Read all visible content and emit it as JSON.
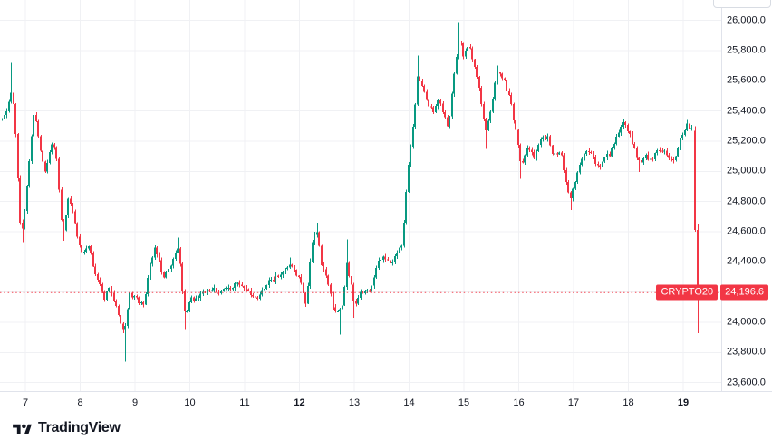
{
  "logo": {
    "text": "TradingView"
  },
  "chart_data": {
    "type": "candlestick",
    "symbol": "CRYPTO20",
    "last_price_text": "24,196.6",
    "last_price": 24196.6,
    "up_color": "#089981",
    "down_color": "#f23645",
    "price_line_color": "#f23645",
    "grid_color": "#f0f1f4",
    "axis_text_color": "#131722",
    "y_axis": {
      "visible_labels": [
        {
          "value": 26000,
          "text": "26,000.0"
        },
        {
          "value": 25800,
          "text": "25,800.0"
        },
        {
          "value": 25600,
          "text": "25,600.0"
        },
        {
          "value": 25400,
          "text": "25,400.0"
        },
        {
          "value": 25200,
          "text": "25,200.0"
        },
        {
          "value": 25000,
          "text": "25,000.0"
        },
        {
          "value": 24800,
          "text": "24,800.0"
        },
        {
          "value": 24600,
          "text": "24,600.0"
        },
        {
          "value": 24400,
          "text": "24,400.0"
        },
        {
          "value": 24000,
          "text": "24,000.0"
        },
        {
          "value": 23800,
          "text": "23,800.0"
        },
        {
          "value": 23600,
          "text": "23,600.0"
        }
      ],
      "grid_values": [
        26000,
        25800,
        25600,
        25400,
        25200,
        25000,
        24800,
        24600,
        24400,
        24200,
        24000,
        23800,
        23600
      ]
    },
    "x_axis": {
      "unit": "day-of-month",
      "labels": [
        {
          "text": "7",
          "day": 7,
          "bold": false
        },
        {
          "text": "8",
          "day": 8,
          "bold": false
        },
        {
          "text": "9",
          "day": 9,
          "bold": false
        },
        {
          "text": "10",
          "day": 10,
          "bold": false
        },
        {
          "text": "11",
          "day": 11,
          "bold": false
        },
        {
          "text": "12",
          "day": 12,
          "bold": true
        },
        {
          "text": "13",
          "day": 13,
          "bold": false
        },
        {
          "text": "14",
          "day": 14,
          "bold": false
        },
        {
          "text": "15",
          "day": 15,
          "bold": false
        },
        {
          "text": "16",
          "day": 16,
          "bold": false
        },
        {
          "text": "17",
          "day": 17,
          "bold": false
        },
        {
          "text": "18",
          "day": 18,
          "bold": false
        },
        {
          "text": "19",
          "day": 19,
          "bold": true
        }
      ]
    },
    "t_start": 6.57,
    "t_end": 19.19,
    "bars_per_day": 24,
    "anchors": [
      [
        6.57,
        25350,
        0,
        0
      ],
      [
        6.67,
        25430,
        0,
        0
      ],
      [
        6.75,
        25560,
        25720,
        0
      ],
      [
        6.82,
        25250,
        0,
        0
      ],
      [
        6.9,
        24650,
        0,
        0
      ],
      [
        6.95,
        24600,
        0,
        24530
      ],
      [
        7.05,
        25000,
        0,
        0
      ],
      [
        7.16,
        25390,
        25450,
        0
      ],
      [
        7.28,
        25150,
        0,
        0
      ],
      [
        7.36,
        25000,
        0,
        0
      ],
      [
        7.48,
        25200,
        0,
        0
      ],
      [
        7.56,
        25150,
        0,
        0
      ],
      [
        7.64,
        24720,
        0,
        0
      ],
      [
        7.7,
        24590,
        0,
        24540
      ],
      [
        7.78,
        24820,
        0,
        0
      ],
      [
        7.86,
        24750,
        0,
        0
      ],
      [
        7.96,
        24550,
        0,
        0
      ],
      [
        8.06,
        24450,
        0,
        0
      ],
      [
        8.16,
        24500,
        0,
        0
      ],
      [
        8.26,
        24350,
        0,
        0
      ],
      [
        8.35,
        24250,
        0,
        0
      ],
      [
        8.44,
        24150,
        0,
        0
      ],
      [
        8.52,
        24220,
        0,
        0
      ],
      [
        8.62,
        24150,
        0,
        0
      ],
      [
        8.7,
        24050,
        0,
        0
      ],
      [
        8.8,
        23900,
        0,
        23740
      ],
      [
        8.9,
        24200,
        0,
        0
      ],
      [
        9.02,
        24150,
        0,
        0
      ],
      [
        9.15,
        24100,
        0,
        0
      ],
      [
        9.26,
        24350,
        0,
        0
      ],
      [
        9.38,
        24500,
        0,
        0
      ],
      [
        9.51,
        24300,
        0,
        0
      ],
      [
        9.64,
        24350,
        0,
        0
      ],
      [
        9.79,
        24500,
        24560,
        0
      ],
      [
        9.9,
        24050,
        0,
        23950
      ],
      [
        10.01,
        24150,
        0,
        0
      ],
      [
        10.17,
        24180,
        0,
        0
      ],
      [
        10.37,
        24220,
        0,
        0
      ],
      [
        10.59,
        24200,
        0,
        0
      ],
      [
        10.8,
        24250,
        0,
        0
      ],
      [
        11,
        24230,
        0,
        0
      ],
      [
        11.21,
        24150,
        0,
        0
      ],
      [
        11.41,
        24250,
        0,
        0
      ],
      [
        11.58,
        24300,
        0,
        0
      ],
      [
        11.74,
        24350,
        0,
        0
      ],
      [
        11.84,
        24400,
        24430,
        0
      ],
      [
        11.94,
        24320,
        0,
        0
      ],
      [
        12.04,
        24250,
        0,
        0
      ],
      [
        12.11,
        24100,
        0,
        0
      ],
      [
        12.22,
        24500,
        0,
        0
      ],
      [
        12.31,
        24620,
        24660,
        0
      ],
      [
        12.4,
        24400,
        0,
        0
      ],
      [
        12.52,
        24250,
        0,
        0
      ],
      [
        12.62,
        24100,
        0,
        0
      ],
      [
        12.72,
        24060,
        0,
        23920
      ],
      [
        12.8,
        24150,
        0,
        0
      ],
      [
        12.85,
        24400,
        24550,
        0
      ],
      [
        12.95,
        24250,
        0,
        0
      ],
      [
        13,
        24080,
        0,
        24030
      ],
      [
        13.1,
        24200,
        0,
        0
      ],
      [
        13.3,
        24200,
        0,
        0
      ],
      [
        13.42,
        24400,
        0,
        0
      ],
      [
        13.55,
        24430,
        0,
        0
      ],
      [
        13.67,
        24400,
        0,
        0
      ],
      [
        13.8,
        24480,
        0,
        0
      ],
      [
        13.88,
        24520,
        0,
        0
      ],
      [
        13.95,
        24900,
        0,
        0
      ],
      [
        14.02,
        25150,
        0,
        0
      ],
      [
        14.1,
        25400,
        0,
        0
      ],
      [
        14.16,
        25650,
        25766,
        0
      ],
      [
        14.24,
        25550,
        0,
        0
      ],
      [
        14.34,
        25450,
        0,
        0
      ],
      [
        14.44,
        25400,
        0,
        25380
      ],
      [
        14.54,
        25480,
        0,
        0
      ],
      [
        14.64,
        25350,
        0,
        0
      ],
      [
        14.72,
        25300,
        0,
        0
      ],
      [
        14.83,
        25700,
        0,
        0
      ],
      [
        14.92,
        25900,
        25990,
        0
      ],
      [
        15,
        25750,
        0,
        0
      ],
      [
        15.08,
        25850,
        25950,
        0
      ],
      [
        15.18,
        25700,
        0,
        0
      ],
      [
        15.28,
        25550,
        0,
        0
      ],
      [
        15.4,
        25250,
        0,
        25150
      ],
      [
        15.51,
        25450,
        0,
        0
      ],
      [
        15.61,
        25650,
        25700,
        0
      ],
      [
        15.73,
        25600,
        0,
        0
      ],
      [
        15.83,
        25500,
        0,
        0
      ],
      [
        15.93,
        25300,
        0,
        0
      ],
      [
        16.04,
        25050,
        0,
        24950
      ],
      [
        16.16,
        25150,
        0,
        0
      ],
      [
        16.29,
        25100,
        0,
        0
      ],
      [
        16.4,
        25200,
        0,
        0
      ],
      [
        16.52,
        25240,
        0,
        0
      ],
      [
        16.64,
        25100,
        0,
        0
      ],
      [
        16.75,
        25150,
        0,
        0
      ],
      [
        16.85,
        24950,
        0,
        0
      ],
      [
        16.93,
        24800,
        0,
        24744
      ],
      [
        17.03,
        24950,
        0,
        0
      ],
      [
        17.13,
        25050,
        0,
        0
      ],
      [
        17.25,
        25150,
        0,
        0
      ],
      [
        17.36,
        25080,
        0,
        0
      ],
      [
        17.46,
        25030,
        0,
        0
      ],
      [
        17.58,
        25090,
        0,
        0
      ],
      [
        17.68,
        25120,
        0,
        0
      ],
      [
        17.79,
        25250,
        0,
        0
      ],
      [
        17.89,
        25330,
        25344,
        0
      ],
      [
        18.01,
        25250,
        0,
        0
      ],
      [
        18.11,
        25150,
        0,
        0
      ],
      [
        18.21,
        25050,
        0,
        24996
      ],
      [
        18.32,
        25100,
        0,
        0
      ],
      [
        18.44,
        25080,
        0,
        0
      ],
      [
        18.55,
        25150,
        0,
        0
      ],
      [
        18.67,
        25120,
        0,
        0
      ],
      [
        18.77,
        25080,
        0,
        0
      ],
      [
        18.87,
        25100,
        0,
        0
      ],
      [
        18.97,
        25250,
        0,
        0
      ],
      [
        19.07,
        25300,
        25340,
        0
      ],
      [
        19.13,
        25270,
        0,
        0
      ],
      [
        19.19,
        25270,
        0,
        0
      ]
    ],
    "final_candles": [
      {
        "day": 19.215,
        "open": 25270,
        "high": 25298,
        "low": 24600,
        "close": 24612
      },
      {
        "day": 19.258,
        "open": 24612,
        "high": 24648,
        "low": 23928,
        "close": 24196.6
      }
    ]
  }
}
